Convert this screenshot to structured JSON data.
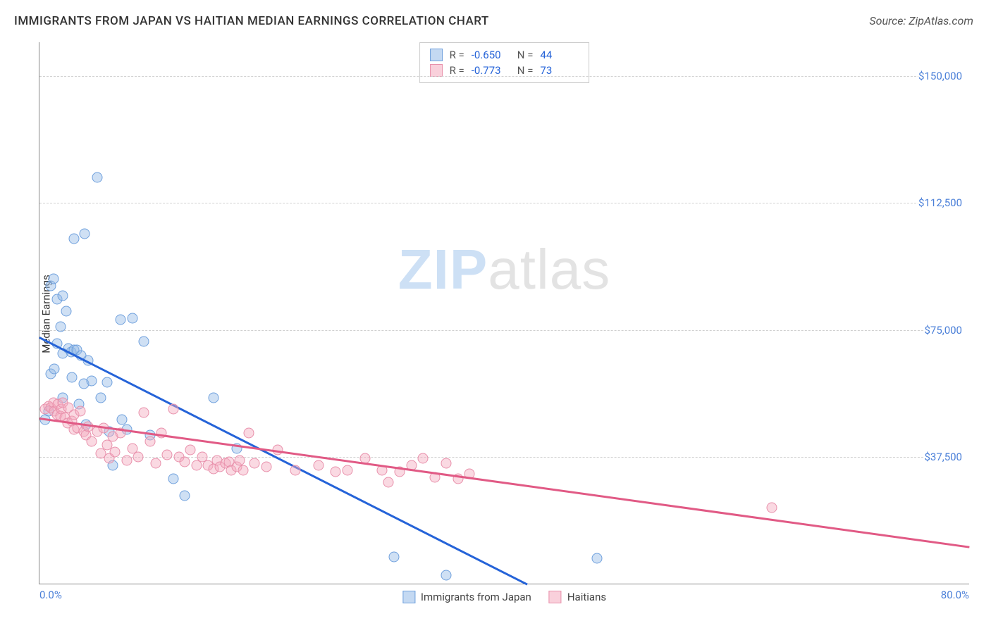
{
  "title": "IMMIGRANTS FROM JAPAN VS HAITIAN MEDIAN EARNINGS CORRELATION CHART",
  "source_label": "Source: ZipAtlas.com",
  "ylabel": "Median Earnings",
  "watermark": {
    "part1": "ZIP",
    "part2": "atlas"
  },
  "chart": {
    "type": "scatter",
    "xlim": [
      0,
      80
    ],
    "ylim": [
      0,
      160000
    ],
    "x_tick_labels": {
      "min": "0.0%",
      "max": "80.0%"
    },
    "y_ticks": [
      {
        "value": 37500,
        "label": "$37,500"
      },
      {
        "value": 75000,
        "label": "$75,000"
      },
      {
        "value": 112500,
        "label": "$112,500"
      },
      {
        "value": 150000,
        "label": "$150,000"
      }
    ],
    "background_color": "#ffffff",
    "grid_color": "#d0d0d0",
    "axis_color": "#888888",
    "tick_label_color": "#4a7fd8",
    "series": [
      {
        "key": "japan",
        "label": "Immigrants from Japan",
        "color_fill": "rgba(148,186,231,0.45)",
        "color_stroke": "#6fa0dd",
        "trend_color": "#2563d8",
        "marker_size": 15,
        "R": "-0.650",
        "N": "44",
        "trendline": {
          "x1": 0,
          "y1": 73000,
          "x2": 42,
          "y2": 0
        },
        "points": [
          {
            "x": 0.5,
            "y": 48500
          },
          {
            "x": 0.8,
            "y": 51000
          },
          {
            "x": 1.0,
            "y": 62000
          },
          {
            "x": 1.0,
            "y": 88000
          },
          {
            "x": 1.2,
            "y": 90000
          },
          {
            "x": 1.3,
            "y": 63500
          },
          {
            "x": 1.5,
            "y": 84000
          },
          {
            "x": 1.5,
            "y": 71000
          },
          {
            "x": 1.8,
            "y": 76000
          },
          {
            "x": 2.0,
            "y": 85000
          },
          {
            "x": 2.0,
            "y": 68000
          },
          {
            "x": 2.0,
            "y": 55000
          },
          {
            "x": 2.3,
            "y": 80500
          },
          {
            "x": 2.5,
            "y": 69500
          },
          {
            "x": 2.7,
            "y": 68500
          },
          {
            "x": 2.8,
            "y": 61000
          },
          {
            "x": 3.0,
            "y": 102000
          },
          {
            "x": 3.0,
            "y": 69000
          },
          {
            "x": 3.2,
            "y": 69000
          },
          {
            "x": 3.4,
            "y": 53000
          },
          {
            "x": 3.6,
            "y": 67500
          },
          {
            "x": 3.8,
            "y": 59000
          },
          {
            "x": 3.9,
            "y": 103500
          },
          {
            "x": 4.0,
            "y": 47000
          },
          {
            "x": 4.2,
            "y": 66000
          },
          {
            "x": 4.5,
            "y": 60000
          },
          {
            "x": 5.0,
            "y": 120000
          },
          {
            "x": 5.3,
            "y": 55000
          },
          {
            "x": 5.8,
            "y": 59500
          },
          {
            "x": 6.0,
            "y": 45000
          },
          {
            "x": 6.3,
            "y": 35000
          },
          {
            "x": 7.0,
            "y": 78000
          },
          {
            "x": 7.1,
            "y": 48500
          },
          {
            "x": 7.5,
            "y": 45500
          },
          {
            "x": 8.0,
            "y": 78500
          },
          {
            "x": 9.0,
            "y": 71500
          },
          {
            "x": 9.5,
            "y": 44000
          },
          {
            "x": 11.5,
            "y": 31000
          },
          {
            "x": 12.5,
            "y": 26000
          },
          {
            "x": 15.0,
            "y": 55000
          },
          {
            "x": 17.0,
            "y": 40000
          },
          {
            "x": 30.5,
            "y": 8000
          },
          {
            "x": 35.0,
            "y": 2500
          },
          {
            "x": 48.0,
            "y": 7500
          }
        ]
      },
      {
        "key": "haitians",
        "label": "Haitians",
        "color_fill": "rgba(244,170,190,0.45)",
        "color_stroke": "#e890ab",
        "trend_color": "#e15a85",
        "marker_size": 15,
        "R": "-0.773",
        "N": "73",
        "trendline": {
          "x1": 0,
          "y1": 49000,
          "x2": 80,
          "y2": 11000
        },
        "points": [
          {
            "x": 0.5,
            "y": 51500
          },
          {
            "x": 0.8,
            "y": 52500
          },
          {
            "x": 1.0,
            "y": 52000
          },
          {
            "x": 1.2,
            "y": 53500
          },
          {
            "x": 1.3,
            "y": 51000
          },
          {
            "x": 1.5,
            "y": 50000
          },
          {
            "x": 1.6,
            "y": 53000
          },
          {
            "x": 1.8,
            "y": 49500
          },
          {
            "x": 1.9,
            "y": 51500
          },
          {
            "x": 2.0,
            "y": 53500
          },
          {
            "x": 2.2,
            "y": 49000
          },
          {
            "x": 2.4,
            "y": 47500
          },
          {
            "x": 2.5,
            "y": 52000
          },
          {
            "x": 2.8,
            "y": 48000
          },
          {
            "x": 3.0,
            "y": 45500
          },
          {
            "x": 3.0,
            "y": 50000
          },
          {
            "x": 3.3,
            "y": 46000
          },
          {
            "x": 3.5,
            "y": 51000
          },
          {
            "x": 3.8,
            "y": 45000
          },
          {
            "x": 4.0,
            "y": 44000
          },
          {
            "x": 4.2,
            "y": 46500
          },
          {
            "x": 4.5,
            "y": 42000
          },
          {
            "x": 5.0,
            "y": 45000
          },
          {
            "x": 5.3,
            "y": 38500
          },
          {
            "x": 5.5,
            "y": 46000
          },
          {
            "x": 5.8,
            "y": 41000
          },
          {
            "x": 6.0,
            "y": 37000
          },
          {
            "x": 6.3,
            "y": 43500
          },
          {
            "x": 6.5,
            "y": 39000
          },
          {
            "x": 7.0,
            "y": 44500
          },
          {
            "x": 7.5,
            "y": 36500
          },
          {
            "x": 8.0,
            "y": 40000
          },
          {
            "x": 8.5,
            "y": 37500
          },
          {
            "x": 9.0,
            "y": 50500
          },
          {
            "x": 9.5,
            "y": 42000
          },
          {
            "x": 10.0,
            "y": 35500
          },
          {
            "x": 10.5,
            "y": 44500
          },
          {
            "x": 11.0,
            "y": 38000
          },
          {
            "x": 11.5,
            "y": 51500
          },
          {
            "x": 12.0,
            "y": 37500
          },
          {
            "x": 12.5,
            "y": 36000
          },
          {
            "x": 13.0,
            "y": 39500
          },
          {
            "x": 13.5,
            "y": 35000
          },
          {
            "x": 14.0,
            "y": 37500
          },
          {
            "x": 14.5,
            "y": 35000
          },
          {
            "x": 15.0,
            "y": 34000
          },
          {
            "x": 15.3,
            "y": 36500
          },
          {
            "x": 15.5,
            "y": 34500
          },
          {
            "x": 16.0,
            "y": 35500
          },
          {
            "x": 16.3,
            "y": 36000
          },
          {
            "x": 16.5,
            "y": 33500
          },
          {
            "x": 17.0,
            "y": 34500
          },
          {
            "x": 17.2,
            "y": 36500
          },
          {
            "x": 17.5,
            "y": 33500
          },
          {
            "x": 18.0,
            "y": 44500
          },
          {
            "x": 18.5,
            "y": 35500
          },
          {
            "x": 19.5,
            "y": 34500
          },
          {
            "x": 20.5,
            "y": 39500
          },
          {
            "x": 22.0,
            "y": 33500
          },
          {
            "x": 24.0,
            "y": 35000
          },
          {
            "x": 25.5,
            "y": 33000
          },
          {
            "x": 26.5,
            "y": 33500
          },
          {
            "x": 28.0,
            "y": 37000
          },
          {
            "x": 29.5,
            "y": 33500
          },
          {
            "x": 30.0,
            "y": 30000
          },
          {
            "x": 31.0,
            "y": 33000
          },
          {
            "x": 32.0,
            "y": 35000
          },
          {
            "x": 33.0,
            "y": 37000
          },
          {
            "x": 34.0,
            "y": 31500
          },
          {
            "x": 35.0,
            "y": 35500
          },
          {
            "x": 36.0,
            "y": 31000
          },
          {
            "x": 37.0,
            "y": 32500
          },
          {
            "x": 63.0,
            "y": 22500
          }
        ]
      }
    ]
  },
  "legend_corr": {
    "R_label": "R =",
    "N_label": "N ="
  }
}
